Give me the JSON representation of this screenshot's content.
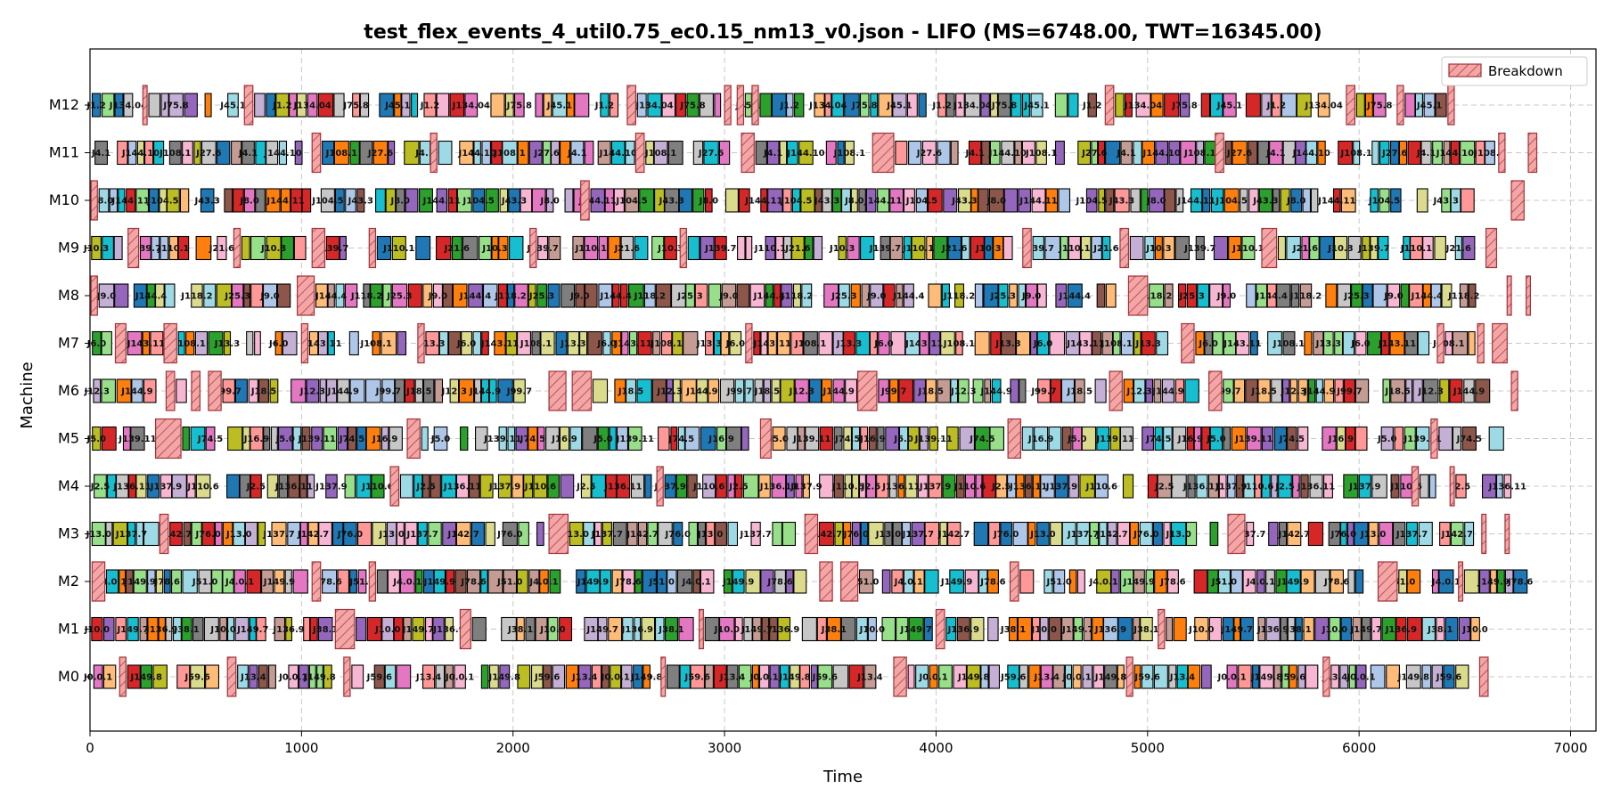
{
  "chart_data": {
    "type": "gantt",
    "title": "test_flex_events_4_util0.75_ec0.15_nm13_v0.json - LIFO (MS=6748.00, TWT=16345.00)",
    "xlabel": "Time",
    "ylabel": "Machine",
    "xlim": [
      0,
      7120
    ],
    "xticks": [
      0,
      1000,
      2000,
      3000,
      4000,
      5000,
      6000,
      7000
    ],
    "machines": [
      "M0",
      "M1",
      "M2",
      "M3",
      "M4",
      "M5",
      "M6",
      "M7",
      "M8",
      "M9",
      "M10",
      "M11",
      "M12"
    ],
    "grid": true,
    "legend": {
      "position": "top-right",
      "entries": [
        {
          "label": "Breakdown",
          "color": "#f4a6a6",
          "edge": "#a0333a",
          "hatch": true
        }
      ]
    },
    "makespan": 6748.0,
    "twt": 16345.0,
    "breakdowns": {
      "M0": [
        [
          140,
          30
        ],
        [
          650,
          40
        ],
        [
          1200,
          30
        ],
        [
          2700,
          20
        ],
        [
          3800,
          60
        ],
        [
          4900,
          30
        ],
        [
          5830,
          30
        ],
        [
          6570,
          40
        ]
      ],
      "M1": [
        [
          1160,
          90
        ],
        [
          1750,
          50
        ],
        [
          2880,
          20
        ],
        [
          4000,
          40
        ],
        [
          5050,
          30
        ]
      ],
      "M2": [
        [
          10,
          60
        ],
        [
          1050,
          40
        ],
        [
          1320,
          30
        ],
        [
          3450,
          60
        ],
        [
          3550,
          80
        ],
        [
          4350,
          40
        ],
        [
          6090,
          90
        ],
        [
          6470,
          20
        ]
      ],
      "M3": [
        [
          330,
          40
        ],
        [
          2170,
          90
        ],
        [
          3380,
          60
        ],
        [
          5380,
          80
        ],
        [
          6580,
          20
        ],
        [
          6690,
          20
        ]
      ],
      "M4": [
        [
          1420,
          40
        ],
        [
          2680,
          30
        ],
        [
          6250,
          30
        ],
        [
          6430,
          20
        ]
      ],
      "M5": [
        [
          310,
          120
        ],
        [
          1500,
          60
        ],
        [
          3170,
          50
        ],
        [
          4340,
          60
        ],
        [
          6340,
          30
        ]
      ],
      "M6": [
        [
          360,
          40
        ],
        [
          480,
          40
        ],
        [
          560,
          60
        ],
        [
          2170,
          80
        ],
        [
          2280,
          90
        ],
        [
          3630,
          90
        ],
        [
          4820,
          60
        ],
        [
          5290,
          60
        ],
        [
          6720,
          30
        ]
      ],
      "M7": [
        [
          120,
          50
        ],
        [
          350,
          60
        ],
        [
          1000,
          30
        ],
        [
          1550,
          30
        ],
        [
          3100,
          30
        ],
        [
          5160,
          60
        ],
        [
          6370,
          30
        ],
        [
          6560,
          30
        ],
        [
          6630,
          70
        ]
      ],
      "M8": [
        [
          5,
          30
        ],
        [
          980,
          80
        ],
        [
          4910,
          90
        ],
        [
          6700,
          20
        ],
        [
          6790,
          20
        ]
      ],
      "M9": [
        [
          180,
          50
        ],
        [
          680,
          30
        ],
        [
          1050,
          60
        ],
        [
          1320,
          30
        ],
        [
          2080,
          30
        ],
        [
          2790,
          30
        ],
        [
          4410,
          40
        ],
        [
          4870,
          40
        ],
        [
          5540,
          70
        ],
        [
          6600,
          50
        ]
      ],
      "M10": [
        [
          5,
          30
        ],
        [
          2320,
          40
        ],
        [
          6720,
          60
        ]
      ],
      "M11": [
        [
          1050,
          40
        ],
        [
          1610,
          30
        ],
        [
          2580,
          40
        ],
        [
          3080,
          60
        ],
        [
          3700,
          100
        ],
        [
          5320,
          40
        ],
        [
          6660,
          30
        ],
        [
          6800,
          40
        ]
      ],
      "M12": [
        [
          250,
          20
        ],
        [
          730,
          40
        ],
        [
          2540,
          40
        ],
        [
          3000,
          30
        ],
        [
          3060,
          30
        ],
        [
          3130,
          30
        ],
        [
          4800,
          40
        ],
        [
          5940,
          40
        ],
        [
          6180,
          30
        ],
        [
          6420,
          30
        ]
      ]
    },
    "sample_jobs": {
      "M0": [
        "J0.0.1",
        "J13.4",
        "J59.6",
        "J149.8"
      ],
      "M1": [
        "J10.0",
        "J38.1",
        "J136.9",
        "J149.7"
      ],
      "M2": [
        "J4.0.1",
        "J51.0",
        "J78.6",
        "J149.9"
      ],
      "M3": [
        "J13.0",
        "J76.0",
        "J142.7",
        "J137.7"
      ],
      "M4": [
        "J2.5",
        "J110.6",
        "J137.9",
        "J136.11"
      ],
      "M5": [
        "J5.0",
        "J16.9",
        "J74.5",
        "J139.11"
      ],
      "M6": [
        "J12.3",
        "J18.5",
        "J99.7",
        "J144.9"
      ],
      "M7": [
        "J6.0",
        "J13.3",
        "J108.1",
        "J143.11"
      ],
      "M8": [
        "J9.0",
        "J25.3",
        "J118.2",
        "J144.4"
      ],
      "M9": [
        "J10.3",
        "J21.6",
        "J110.1",
        "J139.7"
      ],
      "M10": [
        "J8.0",
        "J43.3",
        "J104.5",
        "J144.11"
      ],
      "M11": [
        "J4.1",
        "J27.6",
        "J108.1",
        "J144.10"
      ],
      "M12": [
        "J1.2",
        "J45.1",
        "J75.8",
        "J134.04"
      ]
    },
    "palette": [
      "#1f77b4",
      "#aec7e8",
      "#ff7f0e",
      "#ffbb78",
      "#2ca02c",
      "#98df8a",
      "#d62728",
      "#ff9896",
      "#9467bd",
      "#c5b0d5",
      "#8c564b",
      "#c49c94",
      "#e377c2",
      "#f7b6d2",
      "#7f7f7f",
      "#c7c7c7",
      "#bcbd22",
      "#dbdb8d",
      "#17becf",
      "#9edae5"
    ]
  }
}
